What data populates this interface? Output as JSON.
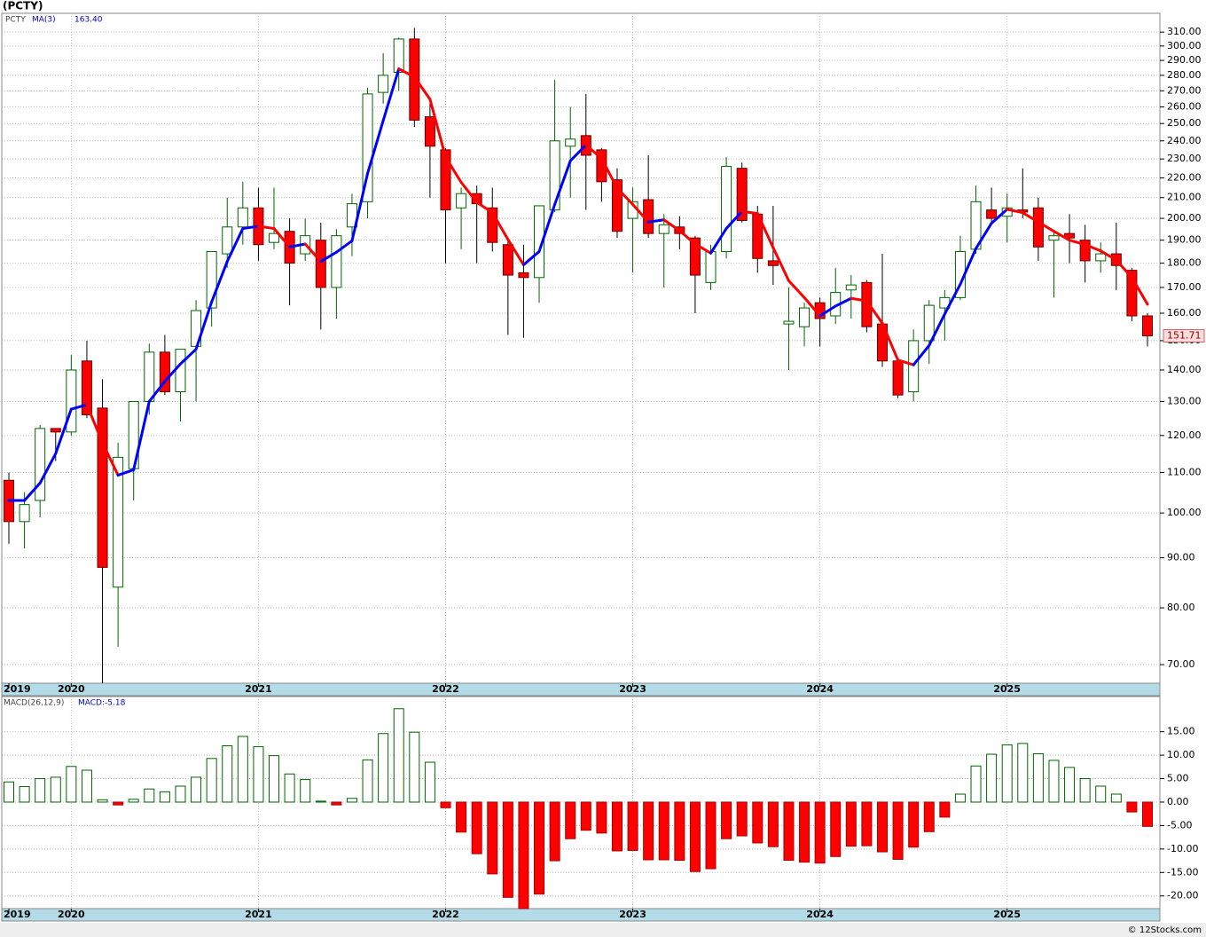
{
  "title": "(PCTY)",
  "watermark": "© 12Stocks.com",
  "chart_data": [
    {
      "type": "candlestick",
      "log_scale": true,
      "grid": true,
      "series_name": "PCTY",
      "up_color": "#006400",
      "down_color": "#ff0000",
      "categories": [
        "2019",
        null,
        null,
        null,
        "2020",
        null,
        null,
        null,
        null,
        null,
        null,
        null,
        null,
        null,
        null,
        null,
        "2021",
        null,
        null,
        null,
        null,
        null,
        null,
        null,
        null,
        null,
        null,
        null,
        "2022",
        null,
        null,
        null,
        null,
        null,
        null,
        null,
        null,
        null,
        null,
        null,
        "2023",
        null,
        null,
        null,
        null,
        null,
        null,
        null,
        null,
        null,
        null,
        null,
        "2024",
        null,
        null,
        null,
        null,
        null,
        null,
        null,
        null,
        null,
        null,
        null,
        "2025",
        null,
        null,
        null,
        null,
        null,
        null,
        null,
        null,
        null
      ],
      "open": [
        108,
        98,
        103,
        122,
        121,
        143,
        128,
        84,
        111,
        130,
        146,
        133,
        148,
        162,
        184,
        196,
        205,
        189,
        194,
        184,
        190,
        170,
        196,
        208,
        269,
        282,
        305,
        254,
        235,
        205,
        212,
        205,
        188,
        176,
        174,
        204,
        237,
        243,
        235,
        219,
        200,
        209,
        193,
        196,
        191,
        172,
        185,
        225,
        202,
        181,
        156,
        155,
        164,
        159,
        169,
        172,
        156,
        143,
        133,
        150,
        162,
        166,
        186,
        204,
        201,
        204,
        205,
        190,
        193,
        190,
        181,
        184,
        177,
        159
      ],
      "high": [
        110,
        105,
        123,
        122,
        145,
        150,
        137,
        118,
        130,
        149,
        152,
        147,
        165,
        185,
        210,
        218,
        215,
        215,
        200,
        200,
        198,
        195,
        212,
        272,
        295,
        306,
        313,
        262,
        236,
        215,
        216,
        215,
        191,
        188,
        206,
        277,
        260,
        268,
        236,
        225,
        215,
        232,
        202,
        201,
        192,
        188,
        231,
        228,
        206,
        206,
        170,
        164,
        166,
        178,
        175,
        173,
        184,
        144,
        154,
        165,
        169,
        192,
        216,
        215,
        212,
        225,
        210,
        194,
        202,
        197,
        189,
        198,
        178,
        160
      ],
      "low": [
        93,
        92,
        99,
        113,
        120,
        125,
        67,
        73,
        103,
        126,
        132,
        124,
        130,
        155,
        178,
        188,
        181,
        186,
        163,
        181,
        154,
        158,
        183,
        200,
        262,
        270,
        248,
        210,
        180,
        186,
        180,
        185,
        152,
        151,
        164,
        203,
        210,
        204,
        208,
        191,
        176,
        191,
        170,
        186,
        160,
        169,
        182,
        198,
        176,
        171,
        140,
        148,
        148,
        156,
        158,
        153,
        141,
        131,
        130,
        142,
        150,
        165,
        184,
        197,
        189,
        200,
        181,
        166,
        180,
        172,
        176,
        169,
        157,
        148
      ],
      "close": [
        98,
        102,
        122,
        121,
        140,
        126,
        88,
        114,
        130,
        146,
        133,
        147,
        161,
        185,
        196,
        205,
        188,
        193,
        180,
        192,
        170,
        192,
        207,
        268,
        280,
        305,
        252,
        237,
        204,
        212,
        207,
        189,
        175,
        174,
        206,
        240,
        241,
        232,
        218,
        194,
        208,
        193,
        197,
        193,
        175,
        185,
        226,
        199,
        182,
        179,
        157,
        162,
        158,
        168,
        171,
        155,
        143,
        132,
        150,
        163,
        166,
        185,
        208,
        200,
        205,
        203,
        187,
        192,
        191,
        181,
        184,
        179,
        159,
        151.71
      ],
      "last_price_label": "151.71",
      "ma": {
        "name": "MA(3)",
        "up_color": "#0000ff",
        "down_color": "#ff0000",
        "value_label": "163.40",
        "values": [
          103,
          103,
          107.3,
          115,
          127.7,
          129,
          118,
          109.3,
          110.7,
          130,
          136.3,
          142,
          147,
          164.3,
          180.7,
          195.3,
          196.3,
          195.3,
          187,
          188.3,
          180.7,
          184.7,
          189.7,
          222.3,
          251.7,
          284.3,
          279,
          264.7,
          231,
          217.7,
          207.7,
          202.7,
          190.3,
          179.3,
          185,
          206.7,
          229,
          237.7,
          230.3,
          214.7,
          206.7,
          198.3,
          199.3,
          194.3,
          188.3,
          184.3,
          195.3,
          203.3,
          202.3,
          186.7,
          172.7,
          166,
          159,
          162.7,
          165.7,
          164.7,
          156.3,
          143.3,
          141.7,
          148.3,
          159.7,
          171.3,
          186.3,
          197.7,
          204.3,
          202.7,
          198.3,
          194,
          190,
          188,
          185.3,
          181.3,
          174,
          163.4
        ]
      },
      "ylim": [
        67,
        324
      ],
      "yticks": [
        {
          "value": 70,
          "label": "70.00"
        },
        {
          "value": 80,
          "label": "80.00"
        },
        {
          "value": 90,
          "label": "90.00"
        },
        {
          "value": 100,
          "label": "100.00"
        },
        {
          "value": 110,
          "label": "110.00"
        },
        {
          "value": 120,
          "label": "120.00"
        },
        {
          "value": 130,
          "label": "130.00"
        },
        {
          "value": 140,
          "label": "140.00"
        },
        {
          "value": 150,
          "label": "150.00"
        },
        {
          "value": 160,
          "label": "160.00"
        },
        {
          "value": 170,
          "label": "170.00"
        },
        {
          "value": 180,
          "label": "180.00"
        },
        {
          "value": 190,
          "label": "190.00"
        },
        {
          "value": 200,
          "label": "200.00"
        },
        {
          "value": 210,
          "label": "210.00"
        },
        {
          "value": 220,
          "label": "220.00"
        },
        {
          "value": 230,
          "label": "230.00"
        },
        {
          "value": 240,
          "label": "240.00"
        },
        {
          "value": 250,
          "label": "250.00"
        },
        {
          "value": 260,
          "label": "260.00"
        },
        {
          "value": 270,
          "label": "270.00"
        },
        {
          "value": 280,
          "label": "280.00"
        },
        {
          "value": 290,
          "label": "290.00"
        },
        {
          "value": 300,
          "label": "300.00"
        },
        {
          "value": 310,
          "label": "310.00"
        }
      ]
    },
    {
      "type": "bar",
      "grid": true,
      "series_name": "MACD(26,12,9)",
      "value_label": "MACD:-5.18",
      "up_color": "#006400",
      "down_color": "#ff0000",
      "categories": [
        "2019",
        null,
        null,
        null,
        "2020",
        null,
        null,
        null,
        null,
        null,
        null,
        null,
        null,
        null,
        null,
        null,
        "2021",
        null,
        null,
        null,
        null,
        null,
        null,
        null,
        null,
        null,
        null,
        null,
        "2022",
        null,
        null,
        null,
        null,
        null,
        null,
        null,
        null,
        null,
        null,
        null,
        "2023",
        null,
        null,
        null,
        null,
        null,
        null,
        null,
        null,
        null,
        null,
        null,
        "2024",
        null,
        null,
        null,
        null,
        null,
        null,
        null,
        null,
        null,
        null,
        null,
        "2025",
        null,
        null,
        null,
        null,
        null,
        null,
        null,
        null,
        null
      ],
      "values": [
        4.3,
        3.3,
        5,
        5.3,
        7.6,
        6.8,
        0.5,
        -0.6,
        0.6,
        2.8,
        2.2,
        3.4,
        5.3,
        9.3,
        12,
        14,
        11.8,
        9.9,
        6,
        4.8,
        0.2,
        -0.6,
        0.8,
        9,
        14.6,
        19.9,
        14.9,
        8.5,
        -1.2,
        -6.4,
        -11,
        -15.3,
        -20.3,
        -22.7,
        -19.6,
        -12.5,
        -7.8,
        -6,
        -6.6,
        -10.4,
        -10.3,
        -12.3,
        -12.3,
        -12.4,
        -14.8,
        -14.2,
        -7.8,
        -7.2,
        -8.7,
        -9.5,
        -12.4,
        -12.8,
        -13,
        -11.6,
        -9.4,
        -9.3,
        -10.6,
        -12.2,
        -9.6,
        -6.3,
        -3.2,
        1.7,
        7.7,
        10.2,
        12.2,
        12.5,
        10.3,
        8.9,
        7.4,
        5,
        3.4,
        1.7,
        -2.1,
        -5.18
      ],
      "ylim": [
        -22.7,
        22.5
      ],
      "yticks": [
        {
          "value": 15,
          "label": "15.00"
        },
        {
          "value": 10,
          "label": "10.00"
        },
        {
          "value": 5,
          "label": "5.00"
        },
        {
          "value": 0,
          "label": "0.00"
        },
        {
          "value": -5,
          "label": "-5.00"
        },
        {
          "value": -10,
          "label": "-10.00"
        },
        {
          "value": -15,
          "label": "-15.00"
        },
        {
          "value": -20,
          "label": "-20.00"
        }
      ]
    }
  ]
}
